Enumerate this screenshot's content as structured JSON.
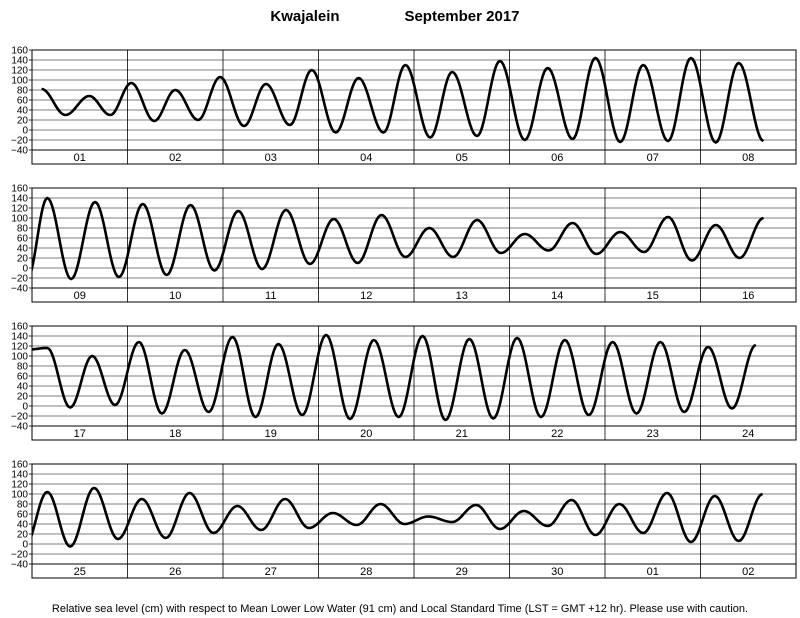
{
  "title": {
    "location": "Kwajalein",
    "period": "September 2017"
  },
  "caption": "Relative sea level (cm) with respect to Mean Lower Low Water (91 cm) and Local Standard Time (LST = GMT +12 hr). Please use with caution.",
  "chart_data": {
    "type": "line",
    "unit": "cm",
    "ylim": [
      -40,
      160
    ],
    "yticks": [
      "160",
      "140",
      "120",
      "100",
      "80",
      "60",
      "40",
      "20",
      "0",
      "−20",
      "−40"
    ],
    "ytick_values": [
      160,
      140,
      120,
      100,
      80,
      60,
      40,
      20,
      0,
      -20,
      -40
    ],
    "grid": true,
    "line_color": "#000000",
    "panels": [
      {
        "days": [
          "01",
          "02",
          "03",
          "04",
          "05",
          "06",
          "07",
          "08"
        ],
        "series": [
          {
            "x": [
              0.1,
              0.35,
              0.6,
              0.82,
              1.04,
              1.28,
              1.5,
              1.74,
              1.97,
              2.22,
              2.45,
              2.7,
              2.93,
              3.18,
              3.42,
              3.68,
              3.91,
              4.17,
              4.4,
              4.66,
              4.9,
              5.16,
              5.4,
              5.66,
              5.9,
              6.16,
              6.4,
              6.66,
              6.9,
              7.16,
              7.4,
              7.66
            ],
            "y": [
              82,
              30,
              68,
              30,
              94,
              18,
              80,
              20,
              106,
              8,
              92,
              10,
              120,
              -5,
              104,
              -5,
              130,
              -15,
              116,
              -12,
              138,
              -20,
              124,
              -18,
              144,
              -24,
              130,
              -22,
              144,
              -25,
              134,
              -22
            ]
          }
        ]
      },
      {
        "days": [
          "09",
          "10",
          "11",
          "12",
          "13",
          "14",
          "15",
          "16"
        ],
        "series": [
          {
            "x": [
              -0.05,
              0.16,
              0.41,
              0.66,
              0.91,
              1.16,
              1.41,
              1.66,
              1.91,
              2.16,
              2.41,
              2.66,
              2.91,
              3.16,
              3.41,
              3.66,
              3.91,
              4.16,
              4.41,
              4.66,
              4.91,
              5.16,
              5.41,
              5.66,
              5.91,
              6.16,
              6.41,
              6.66,
              6.91,
              7.16,
              7.41,
              7.66
            ],
            "y": [
              -22,
              140,
              -22,
              132,
              -18,
              128,
              -14,
              126,
              -5,
              114,
              -2,
              116,
              8,
              98,
              10,
              106,
              22,
              80,
              22,
              96,
              30,
              68,
              35,
              90,
              28,
              72,
              32,
              102,
              15,
              86,
              20,
              100
            ]
          }
        ]
      },
      {
        "days": [
          "17",
          "18",
          "19",
          "20",
          "21",
          "22",
          "23",
          "24"
        ],
        "series": [
          {
            "x": [
              -0.08,
              0.16,
              0.4,
              0.63,
              0.87,
              1.12,
              1.36,
              1.6,
              1.85,
              2.1,
              2.34,
              2.58,
              2.83,
              3.08,
              3.33,
              3.58,
              3.84,
              4.09,
              4.33,
              4.58,
              4.83,
              5.08,
              5.33,
              5.58,
              5.83,
              6.08,
              6.33,
              6.58,
              6.83,
              7.08,
              7.33,
              7.58
            ],
            "y": [
              112,
              116,
              -3,
              100,
              2,
              128,
              -15,
              112,
              -12,
              138,
              -22,
              124,
              -18,
              142,
              -26,
              132,
              -22,
              140,
              -28,
              134,
              -25,
              136,
              -22,
              132,
              -18,
              128,
              -15,
              128,
              -12,
              118,
              -5,
              122
            ]
          }
        ]
      },
      {
        "days": [
          "25",
          "26",
          "27",
          "28",
          "29",
          "30",
          "01",
          "02"
        ],
        "series": [
          {
            "x": [
              -0.08,
              0.16,
              0.4,
              0.65,
              0.9,
              1.15,
              1.4,
              1.65,
              1.9,
              2.15,
              2.4,
              2.65,
              2.9,
              3.15,
              3.4,
              3.65,
              3.9,
              4.15,
              4.4,
              4.65,
              4.9,
              5.15,
              5.4,
              5.65,
              5.9,
              6.15,
              6.4,
              6.65,
              6.9,
              7.15,
              7.4,
              7.65
            ],
            "y": [
              -8,
              104,
              -5,
              112,
              10,
              90,
              12,
              102,
              22,
              76,
              28,
              90,
              32,
              62,
              38,
              80,
              40,
              55,
              44,
              78,
              30,
              66,
              36,
              88,
              18,
              80,
              22,
              102,
              4,
              96,
              6,
              100
            ]
          }
        ]
      }
    ]
  }
}
